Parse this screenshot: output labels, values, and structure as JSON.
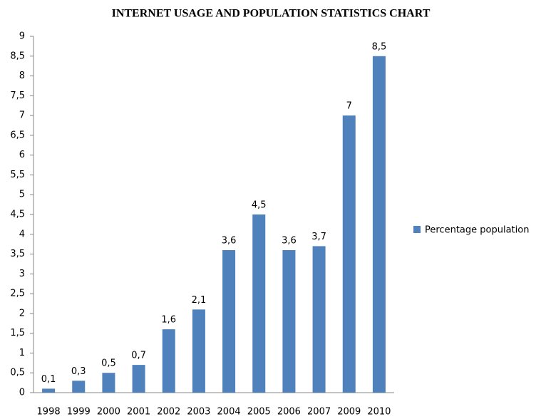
{
  "chart_data": {
    "type": "bar",
    "title": "INTERNET USAGE AND POPULATION STATISTICS CHART",
    "categories": [
      "1998",
      "1999",
      "2000",
      "2001",
      "2002",
      "2003",
      "2004",
      "2005",
      "2006",
      "2007",
      "2009",
      "2010"
    ],
    "series": [
      {
        "name": "Percentage population",
        "color": "#4f81bd",
        "values": [
          0.1,
          0.3,
          0.5,
          0.7,
          1.6,
          2.1,
          3.6,
          4.5,
          3.6,
          3.7,
          7,
          8.5
        ],
        "value_labels": [
          "0,1",
          "0,3",
          "0,5",
          "0,7",
          "1,6",
          "2,1",
          "3,6",
          "4,5",
          "3,6",
          "3,7",
          "7",
          "8,5"
        ]
      }
    ],
    "ylim": [
      0,
      9
    ],
    "yticks": [
      0,
      {
        "value": 0.5,
        "label": "0,5"
      },
      1,
      {
        "value": 1.5,
        "label": "1,5"
      },
      2,
      {
        "value": 2.5,
        "label": "2,5"
      },
      3,
      {
        "value": 3.5,
        "label": "3,5"
      },
      4,
      {
        "value": 4.5,
        "label": "4,5"
      },
      5,
      {
        "value": 5.5,
        "label": "5,5"
      },
      6,
      {
        "value": 6.5,
        "label": "6,5"
      },
      7,
      {
        "value": 7.5,
        "label": "7,5"
      },
      8,
      {
        "value": 8.5,
        "label": "8,5"
      },
      9
    ],
    "grid": false,
    "legend": "right"
  }
}
